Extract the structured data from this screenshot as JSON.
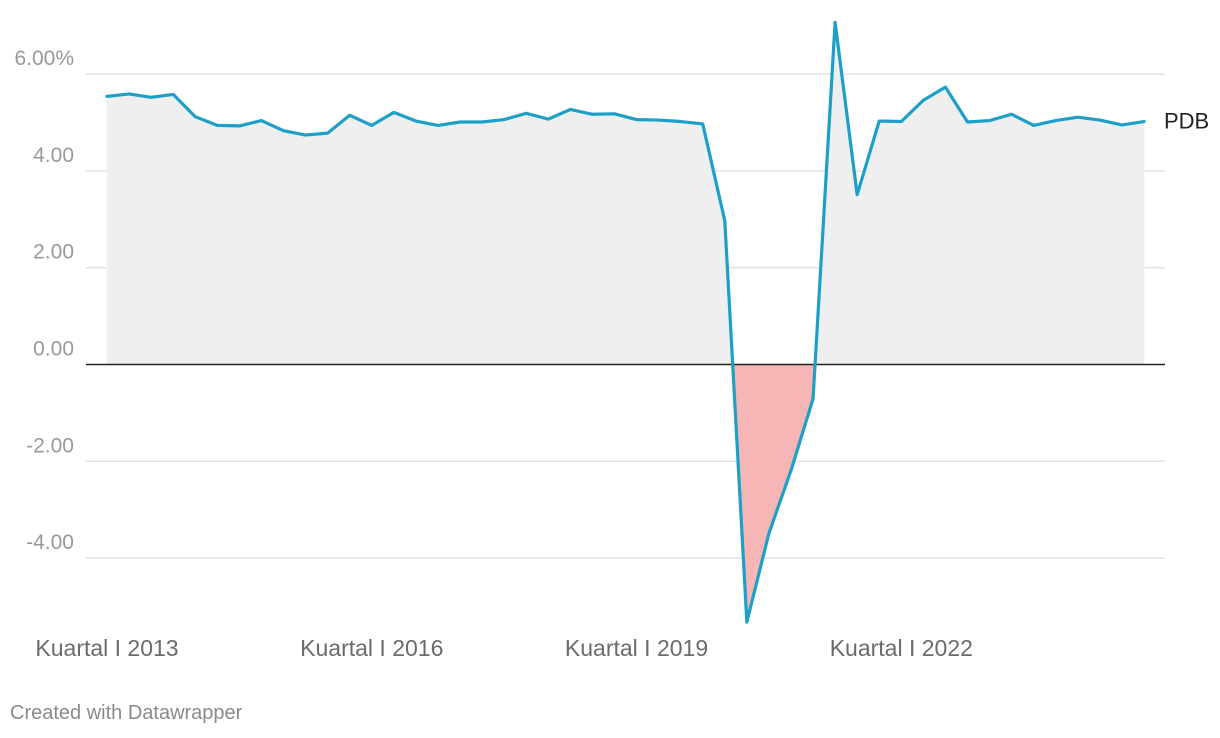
{
  "chart_data": {
    "type": "area",
    "x_start": "Kuartal I 2013",
    "x_step": "quarter",
    "ylim": [
      -5.5,
      7.2
    ],
    "yticks": [
      -4,
      -2,
      0,
      2,
      4,
      6
    ],
    "ytick_labels": [
      "-4.00",
      "-2.00",
      "0.00",
      "2.00",
      "4.00",
      "6.00%"
    ],
    "xticks": [
      {
        "index": 0,
        "label": "Kuartal I 2013"
      },
      {
        "index": 12,
        "label": "Kuartal I 2016"
      },
      {
        "index": 24,
        "label": "Kuartal I 2019"
      },
      {
        "index": 36,
        "label": "Kuartal I 2022"
      }
    ],
    "grid": true,
    "series": [
      {
        "name": "PDB",
        "values": [
          5.54,
          5.59,
          5.52,
          5.58,
          5.12,
          4.94,
          4.93,
          5.04,
          4.83,
          4.74,
          4.78,
          5.15,
          4.94,
          5.21,
          5.03,
          4.94,
          5.01,
          5.01,
          5.06,
          5.19,
          5.07,
          5.27,
          5.17,
          5.18,
          5.06,
          5.05,
          5.02,
          4.97,
          2.97,
          -5.32,
          -3.49,
          -2.19,
          -0.71,
          7.07,
          3.51,
          5.03,
          5.02,
          5.46,
          5.73,
          5.01,
          5.04,
          5.17,
          4.94,
          5.04,
          5.11,
          5.05,
          4.95,
          5.02
        ]
      }
    ]
  },
  "colors": {
    "line": "#1d9fc7",
    "area_positive": "#efefef",
    "area_negative": "#f7b6b6",
    "grid": "#e2e2e2",
    "zero_line": "#222222"
  },
  "credit": "Created with Datawrapper"
}
